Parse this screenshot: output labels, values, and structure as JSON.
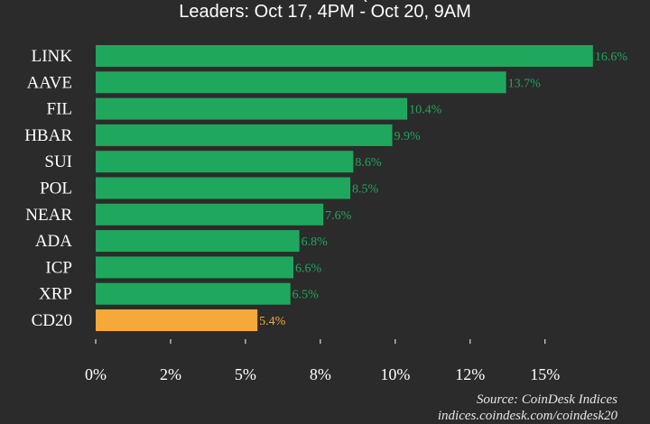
{
  "chart_data": {
    "type": "bar",
    "orientation": "horizontal",
    "title_partial": "(",
    "subtitle": "Leaders: Oct 17, 4PM - Oct 20, 9AM",
    "categories": [
      "LINK",
      "AAVE",
      "FIL",
      "HBAR",
      "SUI",
      "POL",
      "NEAR",
      "ADA",
      "ICP",
      "XRP",
      "CD20"
    ],
    "values": [
      16.6,
      13.7,
      10.4,
      9.9,
      8.6,
      8.5,
      7.6,
      6.8,
      6.6,
      6.5,
      5.4
    ],
    "value_labels": [
      "16.6%",
      "13.7%",
      "10.4%",
      "9.9%",
      "8.6%",
      "8.5%",
      "7.6%",
      "6.8%",
      "6.6%",
      "6.5%",
      "5.4%"
    ],
    "highlight_category": "CD20",
    "xtick_labels": [
      "0%",
      "2%",
      "5%",
      "8%",
      "10%",
      "12%",
      "15%"
    ],
    "xticks": [
      0,
      2.5,
      5,
      7.5,
      10,
      12.5,
      15
    ],
    "xlim": [
      0,
      17
    ],
    "grid": false,
    "colors": {
      "bar": "#1fa85d",
      "highlight": "#f5a93b",
      "background": "#2b2b2b",
      "text": "#ffffff"
    }
  },
  "source": {
    "line1": "Source: CoinDesk Indices",
    "line2": "indices.coindesk.com/coindesk20"
  }
}
